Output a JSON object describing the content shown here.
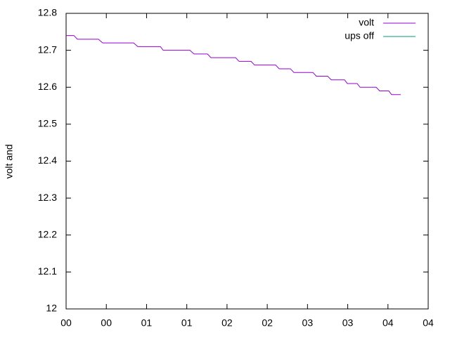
{
  "chart_data": {
    "type": "line",
    "ylabel": "volt and",
    "series": [
      {
        "name": "volt",
        "color": "#9400d3",
        "x": [
          0,
          5.8,
          8.4,
          24.1,
          27.3,
          50.3,
          53.5,
          70.3,
          72.4,
          92.3,
          95.4,
          105.4,
          108,
          126.4,
          129,
          137.9,
          140.5,
          156.2,
          158.9,
          167.2,
          169.9,
          184,
          186.6,
          195,
          197.7,
          207.6,
          209.7,
          217,
          219.2,
          231.2,
          233.8,
          240.6,
          242.7,
          249.5
        ],
        "values": [
          12.74,
          12.74,
          12.73,
          12.73,
          12.72,
          12.72,
          12.71,
          12.71,
          12.7,
          12.7,
          12.69,
          12.69,
          12.68,
          12.68,
          12.67,
          12.67,
          12.66,
          12.66,
          12.65,
          12.65,
          12.64,
          12.64,
          12.63,
          12.63,
          12.62,
          12.62,
          12.61,
          12.61,
          12.6,
          12.6,
          12.59,
          12.59,
          12.58,
          12.58
        ]
      },
      {
        "name": "ups off",
        "color": "#009e73",
        "x": [],
        "values": []
      }
    ],
    "xlim": [
      0,
      270
    ],
    "xticks": [
      {
        "value": 0,
        "label": "00"
      },
      {
        "value": 30,
        "label": "00"
      },
      {
        "value": 60,
        "label": "01"
      },
      {
        "value": 90,
        "label": "01"
      },
      {
        "value": 120,
        "label": "02"
      },
      {
        "value": 150,
        "label": "02"
      },
      {
        "value": 180,
        "label": "03"
      },
      {
        "value": 210,
        "label": "03"
      },
      {
        "value": 240,
        "label": "04"
      },
      {
        "value": 270,
        "label": "04"
      }
    ],
    "ylim": [
      12,
      12.8
    ],
    "yticks": [
      12,
      12.1,
      12.2,
      12.3,
      12.4,
      12.5,
      12.6,
      12.7,
      12.8
    ],
    "legend": "top-right"
  }
}
